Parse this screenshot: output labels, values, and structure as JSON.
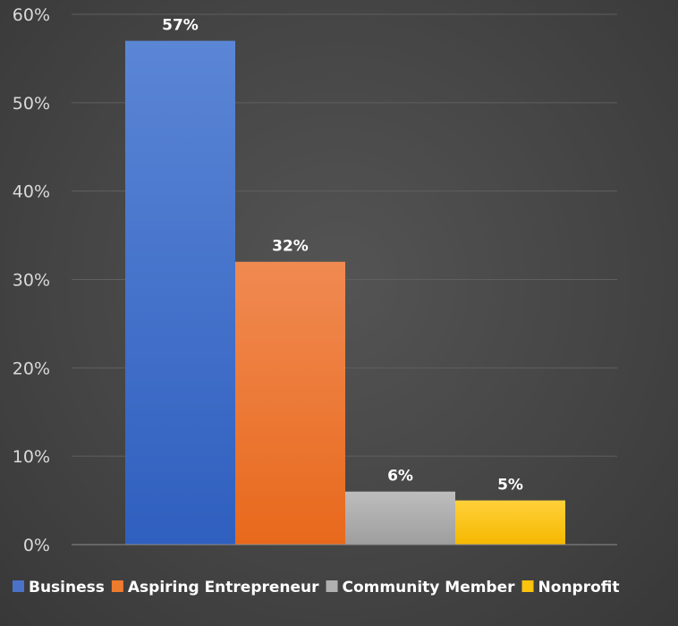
{
  "chart_data": {
    "type": "bar",
    "categories": [
      "Business",
      "Aspiring Entrepreneur",
      "Community Member",
      "Nonprofit"
    ],
    "values": [
      57,
      32,
      6,
      5
    ],
    "data_labels": [
      "57%",
      "32%",
      "6%",
      "5%"
    ],
    "colors": [
      "#4a72c9",
      "#ef7b2e",
      "#b0b0b0",
      "#fbc30d"
    ],
    "ylim": [
      0,
      60
    ],
    "yticks": [
      0,
      10,
      20,
      30,
      40,
      50,
      60
    ],
    "ytick_labels": [
      "0%",
      "10%",
      "20%",
      "30%",
      "40%",
      "50%",
      "60%"
    ],
    "grid": true,
    "legend": "bottom",
    "title": "",
    "xlabel": "",
    "ylabel": ""
  }
}
